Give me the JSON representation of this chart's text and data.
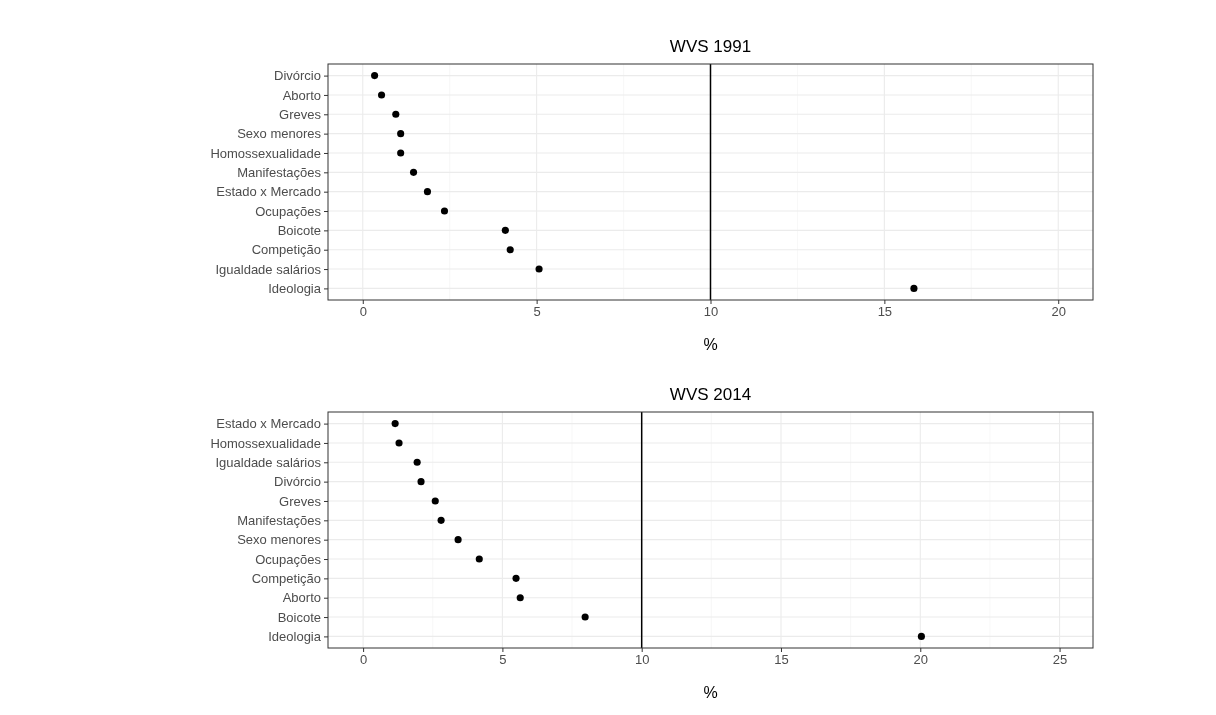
{
  "chart_data": [
    {
      "type": "scatter",
      "title": "WVS 1991",
      "xlabel": "%",
      "orientation": "horizontal",
      "categories": [
        "Divórcio",
        "Aborto",
        "Greves",
        "Sexo menores",
        "Homossexualidade",
        "Manifestações",
        "Estado x Mercado",
        "Ocupações",
        "Boicote",
        "Competição",
        "Igualdade salários",
        "Ideologia"
      ],
      "series": [
        {
          "color": "#000000",
          "values": [
            0.34,
            0.54,
            0.95,
            1.09,
            1.09,
            1.46,
            1.86,
            2.35,
            4.1,
            4.24,
            5.07,
            15.85
          ]
        }
      ],
      "xlim": [
        -1,
        21
      ],
      "xticks": [
        0,
        5,
        10,
        15,
        20
      ],
      "grid": true,
      "marker": "circle",
      "ref_lines": [
        {
          "axis": "x",
          "value": 10,
          "color": "#000000"
        }
      ]
    },
    {
      "type": "scatter",
      "title": "WVS 2014",
      "xlabel": "%",
      "orientation": "horizontal",
      "categories": [
        "Estado x Mercado",
        "Homossexualidade",
        "Igualdade salários",
        "Divórcio",
        "Greves",
        "Manifestações",
        "Sexo menores",
        "Ocupações",
        "Competição",
        "Aborto",
        "Boicote",
        "Ideologia"
      ],
      "series": [
        {
          "color": "#000000",
          "values": [
            1.15,
            1.29,
            1.94,
            2.08,
            2.59,
            2.8,
            3.41,
            4.17,
            5.49,
            5.64,
            7.97,
            20.04
          ]
        }
      ],
      "xlim": [
        -1.26,
        26.2
      ],
      "xticks": [
        0,
        5,
        10,
        15,
        20,
        25
      ],
      "grid": true,
      "marker": "circle",
      "ref_lines": [
        {
          "axis": "x",
          "value": 10,
          "color": "#000000"
        }
      ]
    }
  ]
}
